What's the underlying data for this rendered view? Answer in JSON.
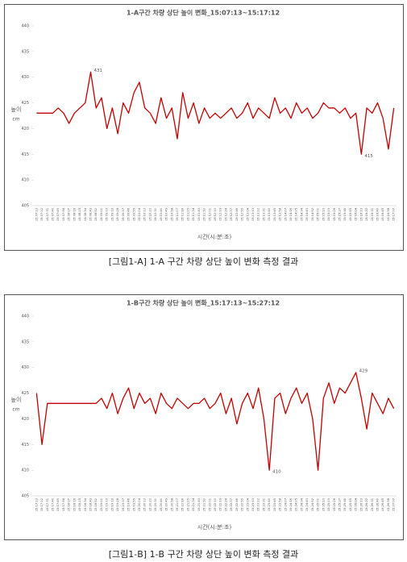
{
  "chart_data": [
    {
      "type": "line",
      "title": "1-A구간 차량 상단 높이 변화_15:07:13~15:17:12",
      "xlabel": "시간(시:분:초)",
      "ylabel": "높이",
      "yunit": "cm",
      "color": "#c00000",
      "grid": false,
      "ylim": [
        405,
        440
      ],
      "yticks": [
        405,
        410,
        415,
        420,
        425,
        430,
        435,
        440
      ],
      "categories": [
        "15:07:13",
        "15:07:22",
        "15:07:31",
        "15:07:40",
        "15:07:49",
        "15:07:58",
        "15:08:07",
        "15:08:16",
        "15:08:25",
        "15:08:34",
        "15:08:43",
        "15:08:52",
        "15:09:01",
        "15:09:10",
        "15:09:19",
        "15:09:28",
        "15:09:37",
        "15:09:46",
        "15:09:55",
        "15:10:04",
        "15:10:13",
        "15:10:22",
        "15:10:31",
        "15:10:40",
        "15:10:49",
        "15:10:58",
        "15:11:07",
        "15:11:16",
        "15:11:25",
        "15:11:34",
        "15:11:43",
        "15:11:52",
        "15:12:01",
        "15:12:10",
        "15:12:19",
        "15:12:28",
        "15:12:37",
        "15:12:46",
        "15:12:55",
        "15:13:04",
        "15:13:13",
        "15:13:22",
        "15:13:31",
        "15:13:40",
        "15:13:49",
        "15:13:58",
        "15:14:07",
        "15:14:16",
        "15:14:25",
        "15:14:34",
        "15:14:43",
        "15:14:52",
        "15:15:01",
        "15:15:10",
        "15:15:19",
        "15:15:28",
        "15:15:37",
        "15:15:46",
        "15:15:55",
        "15:16:04",
        "15:16:13",
        "15:16:22",
        "15:16:31",
        "15:16:40",
        "15:16:49",
        "15:16:58",
        "15:17:07"
      ],
      "values": [
        423,
        423,
        423,
        423,
        424,
        423,
        421,
        423,
        424,
        425,
        431,
        424,
        426,
        420,
        424,
        419,
        425,
        423,
        427,
        429,
        424,
        423,
        421,
        426,
        422,
        424,
        418,
        427,
        422,
        425,
        421,
        424,
        422,
        423,
        422,
        423,
        424,
        422,
        423,
        425,
        422,
        424,
        423,
        422,
        426,
        423,
        424,
        422,
        425,
        423,
        424,
        422,
        423,
        425,
        424,
        424,
        423,
        424,
        422,
        423,
        415,
        424,
        423,
        425,
        422,
        416,
        424
      ]
    },
    {
      "type": "line",
      "title": "1-B구간 차량 상단 높이 변화_15:17:13~15:27:12",
      "xlabel": "시간(시:분:초)",
      "ylabel": "높이",
      "yunit": "cm",
      "color": "#c00000",
      "grid": false,
      "ylim": [
        405,
        440
      ],
      "yticks": [
        405,
        410,
        415,
        420,
        425,
        430,
        435,
        440
      ],
      "categories": [
        "15:17:13",
        "15:17:22",
        "15:17:31",
        "15:17:40",
        "15:17:49",
        "15:17:58",
        "15:18:07",
        "15:18:16",
        "15:18:25",
        "15:18:34",
        "15:18:43",
        "15:18:52",
        "15:19:01",
        "15:19:10",
        "15:19:19",
        "15:19:28",
        "15:19:37",
        "15:19:46",
        "15:19:55",
        "15:20:04",
        "15:20:13",
        "15:20:22",
        "15:20:31",
        "15:20:40",
        "15:20:49",
        "15:20:58",
        "15:21:07",
        "15:21:16",
        "15:21:25",
        "15:21:34",
        "15:21:43",
        "15:21:52",
        "15:22:01",
        "15:22:10",
        "15:22:19",
        "15:22:28",
        "15:22:37",
        "15:22:46",
        "15:22:55",
        "15:23:04",
        "15:23:13",
        "15:23:22",
        "15:23:31",
        "15:23:40",
        "15:23:49",
        "15:23:58",
        "15:24:07",
        "15:24:16",
        "15:24:25",
        "15:24:34",
        "15:24:43",
        "15:24:52",
        "15:25:01",
        "15:25:10",
        "15:25:19",
        "15:25:28",
        "15:25:37",
        "15:25:46",
        "15:25:55",
        "15:26:04",
        "15:26:13",
        "15:26:22",
        "15:26:31",
        "15:26:40",
        "15:26:49",
        "15:26:58",
        "15:27:07"
      ],
      "values": [
        425,
        415,
        423,
        423,
        423,
        423,
        423,
        423,
        423,
        423,
        423,
        423,
        424,
        422,
        425,
        421,
        424,
        426,
        422,
        425,
        423,
        424,
        421,
        425,
        423,
        422,
        424,
        423,
        422,
        423,
        423,
        424,
        422,
        423,
        425,
        421,
        424,
        419,
        423,
        425,
        422,
        426,
        420,
        410,
        424,
        425,
        421,
        424,
        426,
        423,
        425,
        420,
        410,
        424,
        427,
        423,
        426,
        425,
        427,
        429,
        424,
        418,
        425,
        423,
        421,
        424,
        422
      ]
    }
  ],
  "captions": [
    "[그림1-A] 1-A 구간 차량 상단 높이 변화 측정 결과",
    "[그림1-B] 1-B 구간 차량 상단 높이 변화 측정 결과"
  ]
}
